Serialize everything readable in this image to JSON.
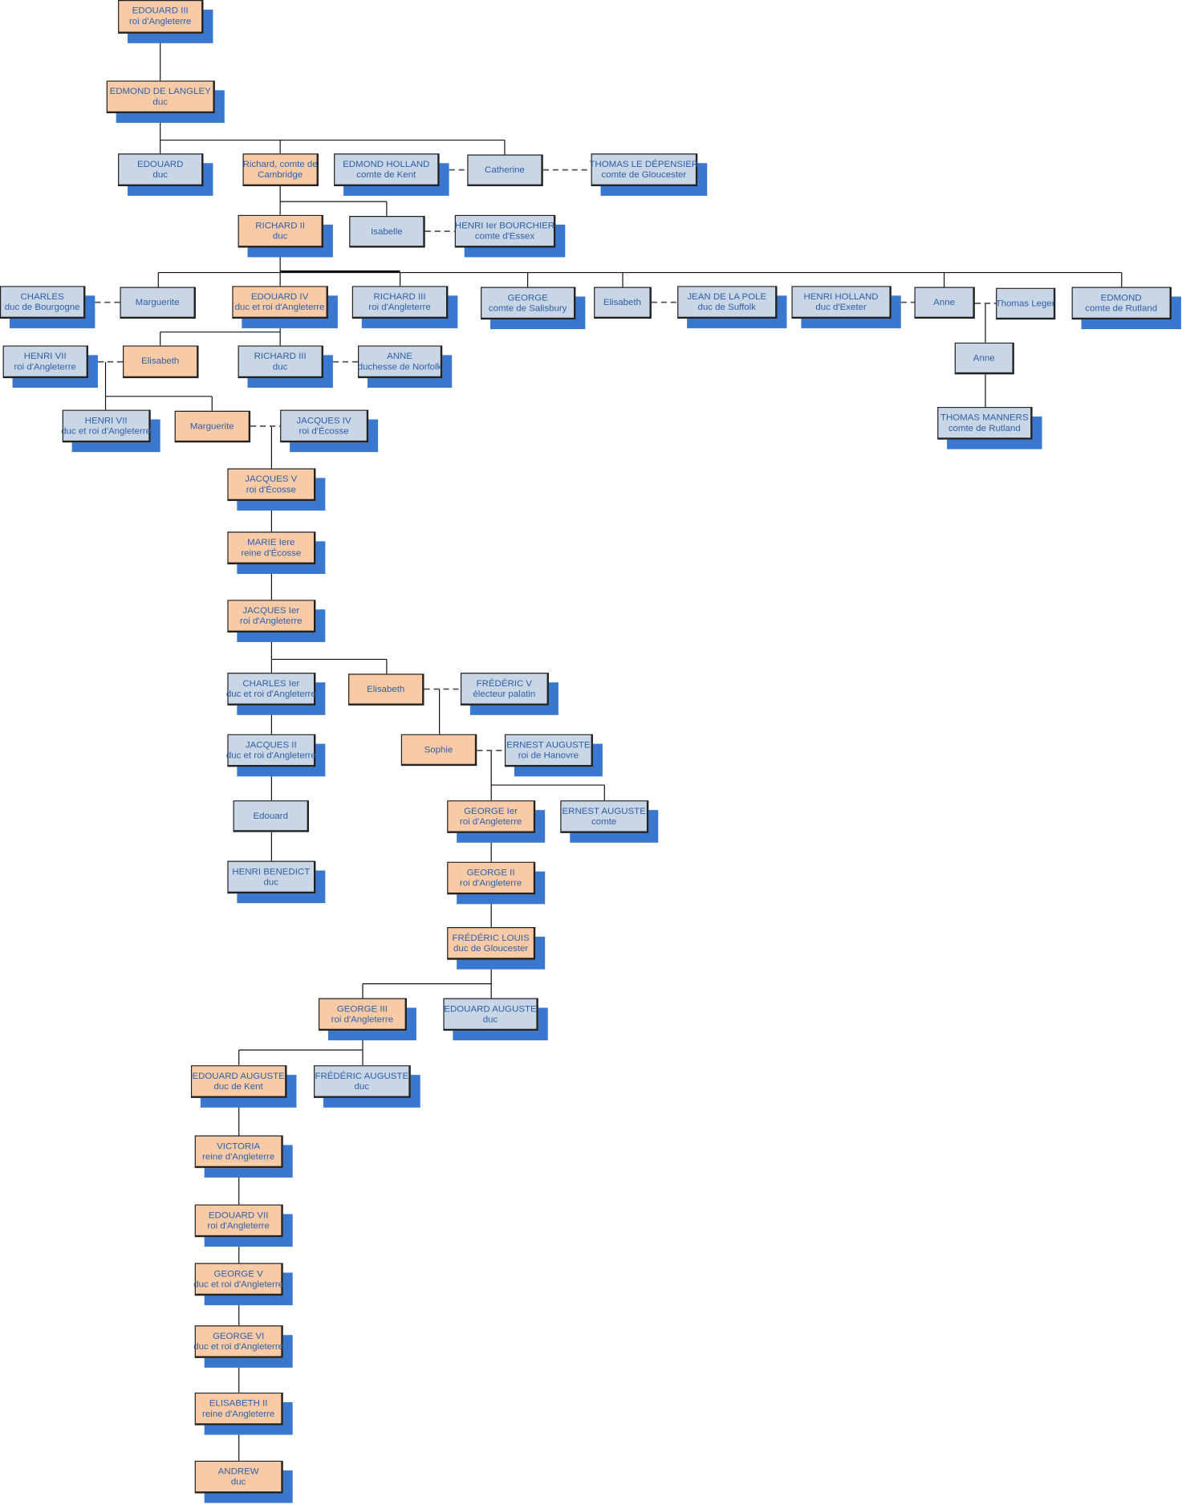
{
  "colors": {
    "direct_line": "#f8cba6",
    "relative": "#c9d6e6",
    "shadow": "#3a78d0",
    "text": "#2f5fa8"
  },
  "persons": [
    {
      "name": "EDOUARD III",
      "title": "roi d'Angleterre",
      "kind": "direct_line"
    },
    {
      "name": "EDMOND DE LANGLEY",
      "title": "duc",
      "kind": "direct_line"
    },
    {
      "name": "EDOUARD",
      "title": "duc",
      "kind": "relative"
    },
    {
      "name": "Richard, comte de",
      "title": "Cambridge",
      "kind": "direct_line"
    },
    {
      "name": "EDMOND HOLLAND",
      "title": "comte de Kent",
      "kind": "relative"
    },
    {
      "name": "Catherine",
      "title": "",
      "kind": "relative"
    },
    {
      "name": "THOMAS LE DÉPENSIER",
      "title": "comte de Gloucester",
      "kind": "relative"
    },
    {
      "name": "RICHARD II",
      "title": "duc",
      "kind": "direct_line"
    },
    {
      "name": "Isabelle",
      "title": "",
      "kind": "relative"
    },
    {
      "name": "HENRI Ier BOURCHIER",
      "title": "comte d'Essex",
      "kind": "relative"
    },
    {
      "name": "CHARLES",
      "title": "duc de Bourgogne",
      "kind": "relative"
    },
    {
      "name": "Marguerite",
      "title": "",
      "kind": "relative"
    },
    {
      "name": "EDOUARD IV",
      "title": "duc et roi d'Angleterre",
      "kind": "direct_line"
    },
    {
      "name": "RICHARD III",
      "title": "roi d'Angleterre",
      "kind": "relative"
    },
    {
      "name": "GEORGE",
      "title": "comte de Salisbury",
      "kind": "relative"
    },
    {
      "name": "Elisabeth",
      "title": "",
      "kind": "relative"
    },
    {
      "name": "JEAN DE LA POLE",
      "title": "duc de Suffolk",
      "kind": "relative"
    },
    {
      "name": "HENRI HOLLAND",
      "title": "duc d'Exeter",
      "kind": "relative"
    },
    {
      "name": "Anne",
      "title": "",
      "kind": "relative"
    },
    {
      "name": "Thomas Leger",
      "title": "",
      "kind": "relative"
    },
    {
      "name": "EDMOND",
      "title": "comte de Rutland",
      "kind": "relative"
    },
    {
      "name": "HENRI VII",
      "title": "roi d'Angleterre",
      "kind": "relative"
    },
    {
      "name": "Elisabeth",
      "title": "",
      "kind": "direct_line"
    },
    {
      "name": "RICHARD III",
      "title": "duc",
      "kind": "relative"
    },
    {
      "name": "ANNE",
      "title": "duchesse de Norfolk",
      "kind": "relative"
    },
    {
      "name": "Anne",
      "title": "",
      "kind": "relative"
    },
    {
      "name": "THOMAS MANNERS",
      "title": "comte de Rutland",
      "kind": "relative"
    },
    {
      "name": "HENRI VII",
      "title": "duc et roi d'Angleterre",
      "kind": "relative"
    },
    {
      "name": "Marguerite",
      "title": "",
      "kind": "direct_line"
    },
    {
      "name": "JACQUES IV",
      "title": "roi d'Écosse",
      "kind": "relative"
    },
    {
      "name": "JACQUES V",
      "title": "roi d'Écosse",
      "kind": "direct_line"
    },
    {
      "name": "MARIE Iere",
      "title": "reine d'Écosse",
      "kind": "direct_line"
    },
    {
      "name": "JACQUES Ier",
      "title": "roi d'Angleterre",
      "kind": "direct_line"
    },
    {
      "name": "CHARLES Ier",
      "title": "duc et roi d'Angleterre",
      "kind": "relative"
    },
    {
      "name": "Elisabeth",
      "title": "",
      "kind": "direct_line"
    },
    {
      "name": "FRÉDÉRIC V",
      "title": "électeur palatin",
      "kind": "relative"
    },
    {
      "name": "JACQUES II",
      "title": "duc et roi d'Angleterre",
      "kind": "relative"
    },
    {
      "name": "Sophie",
      "title": "",
      "kind": "direct_line"
    },
    {
      "name": "ERNEST AUGUSTE",
      "title": "roi de Hanovre",
      "kind": "relative"
    },
    {
      "name": "Edouard",
      "title": "",
      "kind": "relative"
    },
    {
      "name": "GEORGE Ier",
      "title": "roi d'Angleterre",
      "kind": "direct_line"
    },
    {
      "name": "ERNEST AUGUSTE",
      "title": "comte",
      "kind": "relative"
    },
    {
      "name": "HENRI BENEDICT",
      "title": "duc",
      "kind": "relative"
    },
    {
      "name": "GEORGE II",
      "title": "roi d'Angleterre",
      "kind": "direct_line"
    },
    {
      "name": "FRÉDÉRIC LOUIS",
      "title": "duc de Gloucester",
      "kind": "direct_line"
    },
    {
      "name": "GEORGE III",
      "title": "roi d'Angleterre",
      "kind": "direct_line"
    },
    {
      "name": "EDOUARD AUGUSTE",
      "title": "duc",
      "kind": "relative"
    },
    {
      "name": "EDOUARD AUGUSTE",
      "title": "duc de Kent",
      "kind": "direct_line"
    },
    {
      "name": "FRÉDÉRIC AUGUSTE",
      "title": "duc",
      "kind": "relative"
    },
    {
      "name": "VICTORIA",
      "title": "reine d'Angleterre",
      "kind": "direct_line"
    },
    {
      "name": "EDOUARD VII",
      "title": "roi d'Angleterre",
      "kind": "direct_line"
    },
    {
      "name": "GEORGE V",
      "title": "duc et roi d'Angleterre",
      "kind": "direct_line"
    },
    {
      "name": "GEORGE VI",
      "title": "duc et roi d'Angleterre",
      "kind": "direct_line"
    },
    {
      "name": "ELISABETH II",
      "title": "reine d'Angleterre",
      "kind": "direct_line"
    },
    {
      "name": "ANDREW",
      "title": "duc",
      "kind": "direct_line"
    }
  ]
}
